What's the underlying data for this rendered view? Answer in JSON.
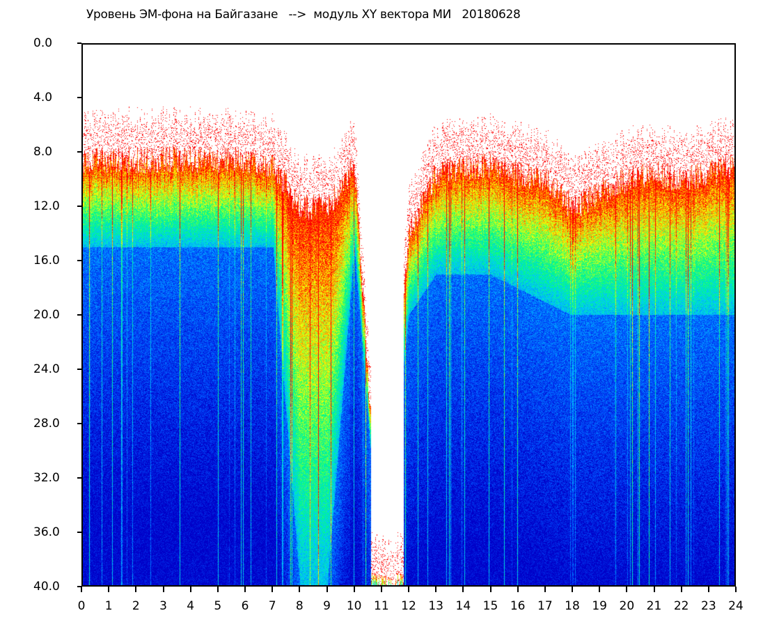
{
  "chart_data": {
    "type": "heatmap",
    "title": "Уровень ЭМ-фона на Байгазане   -->  модуль XY вектора МИ   20180628",
    "xlabel": "",
    "ylabel": "",
    "xlim": [
      0,
      24
    ],
    "ylim": [
      40,
      0
    ],
    "x_ticks": [
      "0",
      "1",
      "2",
      "3",
      "4",
      "5",
      "6",
      "7",
      "8",
      "9",
      "10",
      "11",
      "12",
      "13",
      "14",
      "15",
      "16",
      "17",
      "18",
      "19",
      "20",
      "21",
      "22",
      "23",
      "24"
    ],
    "y_ticks": [
      "0.0",
      "4.0",
      "8.0",
      "12.0",
      "16.0",
      "20.0",
      "24.0",
      "28.0",
      "32.0",
      "36.0",
      "40.0"
    ],
    "colormap": [
      "#0000c8",
      "#0050ff",
      "#00c8ff",
      "#00ff80",
      "#ffff00",
      "#ff0000"
    ],
    "hours": [
      0,
      1,
      2,
      3,
      4,
      5,
      6,
      7,
      8,
      9,
      10,
      11,
      12,
      13,
      14,
      15,
      16,
      17,
      18,
      19,
      20,
      21,
      22,
      23,
      24
    ],
    "signal_top_level": [
      8.5,
      8.5,
      8.5,
      8.5,
      8.5,
      8.5,
      8.5,
      9,
      12,
      12,
      9,
      40,
      14,
      9.5,
      9,
      9,
      9.5,
      10,
      12,
      11,
      10,
      9.5,
      10,
      9.5,
      9
    ],
    "blue_onset_level": [
      15,
      15,
      15,
      15,
      15,
      15,
      15,
      15,
      40,
      40,
      15,
      40,
      20,
      17,
      17,
      17,
      18,
      19,
      20,
      20,
      20,
      20,
      20,
      20,
      20
    ]
  }
}
